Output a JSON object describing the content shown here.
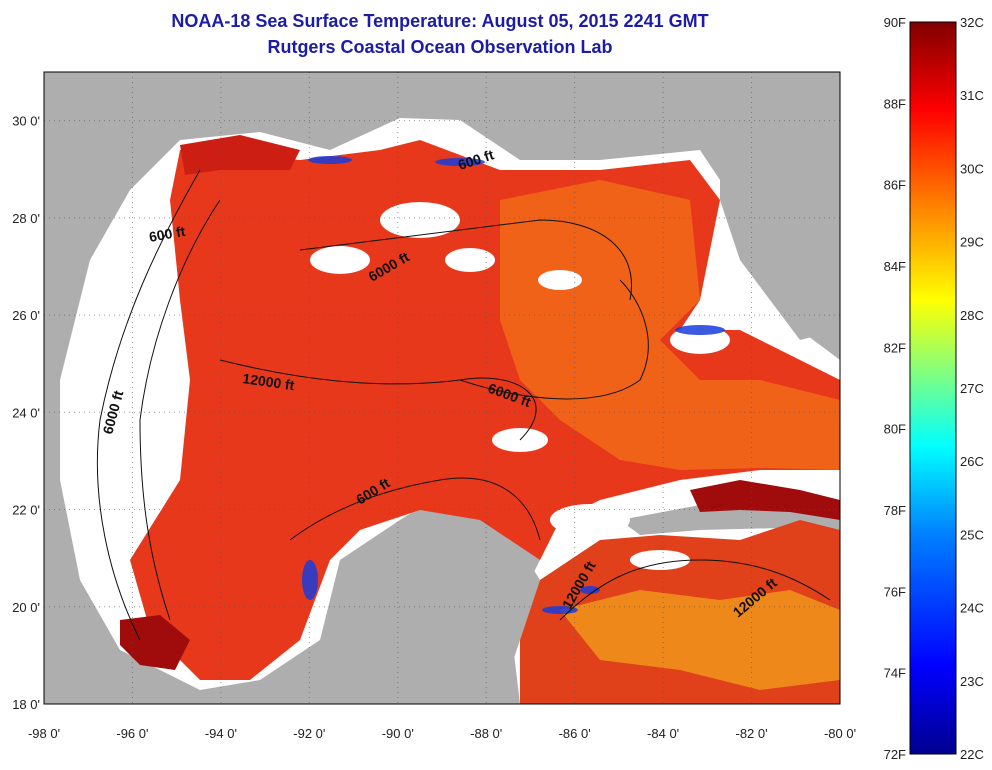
{
  "title": {
    "line1": "NOAA-18 Sea Surface Temperature:  August 05, 2015 2241 GMT",
    "line2": "Rutgers Coastal Ocean Observation Lab"
  },
  "axes": {
    "lat_ticks": [
      "30 0'",
      "28 0'",
      "26 0'",
      "24 0'",
      "22 0'",
      "20 0'",
      "18 0'"
    ],
    "lon_ticks": [
      "-98 0'",
      "-96 0'",
      "-94 0'",
      "-92 0'",
      "-90 0'",
      "-88 0'",
      "-86 0'",
      "-84 0'",
      "-82 0'",
      "-80 0'"
    ],
    "lat_range": [
      18,
      31
    ],
    "lon_range": [
      -98,
      -80
    ]
  },
  "contour_labels": [
    "600 ft",
    "6000 ft",
    "12000 ft",
    "6000 ft",
    "600 ft",
    "6000 ft",
    "600 ft",
    "12000 ft",
    "12000 ft"
  ],
  "colorbar": {
    "fahrenheit": [
      "90F",
      "88F",
      "86F",
      "84F",
      "82F",
      "80F",
      "78F",
      "76F",
      "74F",
      "72F"
    ],
    "celsius": [
      "32C",
      "31C",
      "30C",
      "29C",
      "28C",
      "27C",
      "26C",
      "25C",
      "24C",
      "23C",
      "22C"
    ],
    "range_c": [
      22,
      32
    ],
    "colors": [
      "#00008f",
      "#0000ff",
      "#0080ff",
      "#00ffff",
      "#80ff80",
      "#ffff00",
      "#ff8000",
      "#ff0000",
      "#800000"
    ]
  },
  "colors": {
    "land": "#aeaeae",
    "cloud": "#ffffff",
    "sst_warm": "#e8321c",
    "sst_hot": "#a00c0c",
    "title": "#1c1ca6"
  }
}
